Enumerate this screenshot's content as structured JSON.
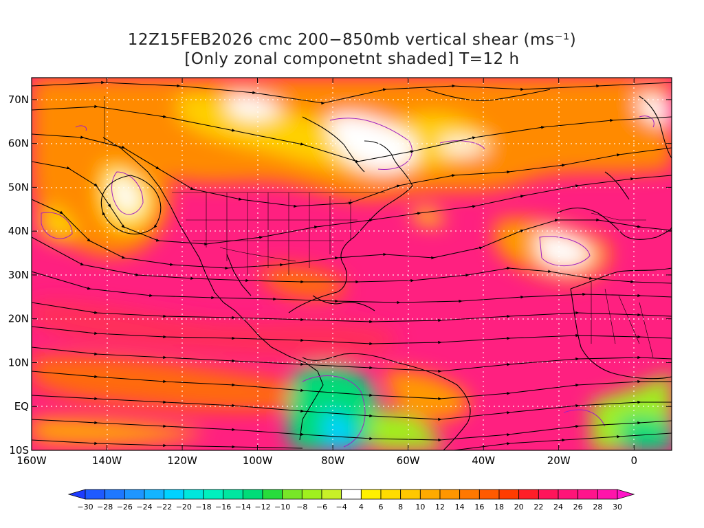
{
  "title": {
    "line1": "12Z15FEB2026 cmc 200−850mb vertical shear (ms⁻¹)",
    "line2": "[Only zonal componetnt shaded] T=12 h"
  },
  "chart_data": {
    "type": "heatmap",
    "title": "12Z15FEB2026 cmc 200−850mb vertical shear (ms⁻¹)",
    "subtitle": "[Only zonal componetnt shaded] T=12 h",
    "x_range": [
      -160,
      10
    ],
    "y_range": [
      -10,
      75
    ],
    "lon_ticks": [
      {
        "lon": -160,
        "label": "160W"
      },
      {
        "lon": -140,
        "label": "140W"
      },
      {
        "lon": -120,
        "label": "120W"
      },
      {
        "lon": -100,
        "label": "100W"
      },
      {
        "lon": -80,
        "label": "80W"
      },
      {
        "lon": -60,
        "label": "60W"
      },
      {
        "lon": -40,
        "label": "40W"
      },
      {
        "lon": -20,
        "label": "20W"
      },
      {
        "lon": 0,
        "label": "0"
      }
    ],
    "lat_ticks": [
      {
        "lat": 70,
        "label": "70N"
      },
      {
        "lat": 60,
        "label": "60N"
      },
      {
        "lat": 50,
        "label": "50N"
      },
      {
        "lat": 40,
        "label": "40N"
      },
      {
        "lat": 30,
        "label": "30N"
      },
      {
        "lat": 20,
        "label": "20N"
      },
      {
        "lat": 10,
        "label": "10N"
      },
      {
        "lat": 0,
        "label": "EQ"
      },
      {
        "lat": -10,
        "label": "10S"
      }
    ],
    "grid": true,
    "colorbar": {
      "levels": [
        -30,
        -28,
        -26,
        -24,
        -22,
        -20,
        -18,
        -16,
        -14,
        -12,
        -10,
        -8,
        -6,
        -4,
        4,
        6,
        8,
        10,
        12,
        14,
        16,
        18,
        20,
        22,
        24,
        26,
        28,
        30
      ],
      "labels": [
        "−30",
        "−28",
        "−26",
        "−24",
        "−22",
        "−20",
        "−18",
        "−16",
        "−14",
        "−12",
        "−10",
        "−8",
        "−6",
        "−4",
        "4",
        "6",
        "8",
        "10",
        "12",
        "14",
        "16",
        "18",
        "20",
        "22",
        "24",
        "26",
        "28",
        "30"
      ],
      "colors": [
        "#1e3cff",
        "#1e5aff",
        "#1e78ff",
        "#1e96ff",
        "#14b4ff",
        "#00d2ff",
        "#00e6dc",
        "#00f0be",
        "#00e6a0",
        "#00dc78",
        "#28dc3c",
        "#78e628",
        "#a0f01e",
        "#c8f028",
        "#ffffff",
        "#fff000",
        "#ffdc00",
        "#ffc800",
        "#ffaa00",
        "#ff9600",
        "#ff7800",
        "#ff5a00",
        "#ff3c00",
        "#ff1e28",
        "#ff145a",
        "#ff1478",
        "#ff148c",
        "#ff14aa",
        "#ff14c8"
      ]
    }
  }
}
